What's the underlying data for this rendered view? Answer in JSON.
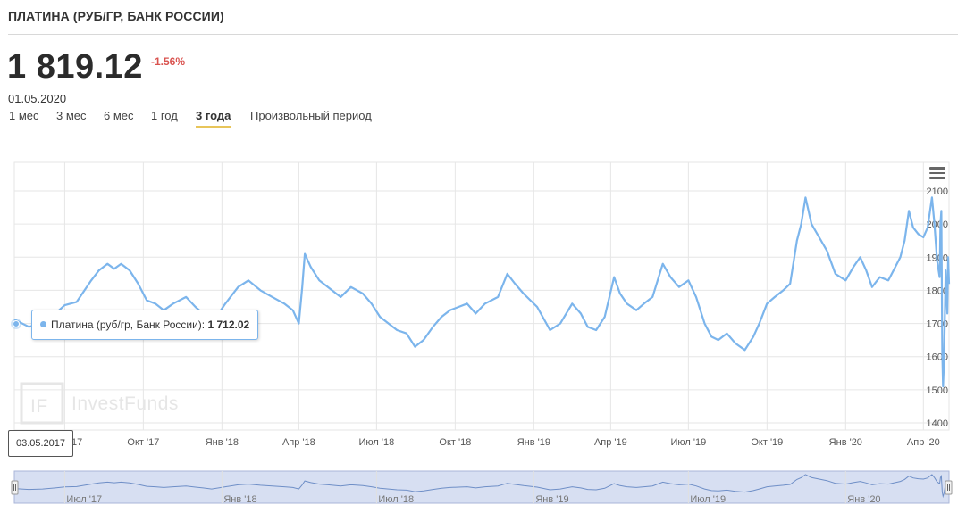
{
  "header": {
    "title": "ПЛАТИНА (РУБ/ГР, БАНК РОССИИ)",
    "price": "1 819.12",
    "change": "-1.56%",
    "date": "01.05.2020"
  },
  "periods": [
    {
      "label": "1 мес",
      "active": false
    },
    {
      "label": "3 мес",
      "active": false
    },
    {
      "label": "6 мес",
      "active": false
    },
    {
      "label": "1 год",
      "active": false
    },
    {
      "label": "3 года",
      "active": true
    },
    {
      "label": "Произвольный период",
      "active": false
    }
  ],
  "tooltip": {
    "series": "Платина (руб/гр, Банк России):",
    "value": "1 712.02"
  },
  "date_flag": "03.05.2017",
  "watermark": "InvestFunds",
  "colors": {
    "line": "#7cb5ec",
    "change_negative": "#d9534f",
    "active_underline": "#e8c55a"
  },
  "icons": {
    "menu": "hamburger-icon"
  },
  "chart_data": {
    "type": "line",
    "series": [
      {
        "name": "Платина (руб/гр, Банк России)",
        "values": []
      }
    ],
    "ylim": [
      1400,
      2100
    ],
    "y_ticks": [
      "1400",
      "1500",
      "1600",
      "1700",
      "1800",
      "1900",
      "2000",
      "2100"
    ],
    "x_range": [
      "2017-05-03",
      "2020-05-01"
    ],
    "x_ticks": [
      {
        "label": "Июл '17",
        "date": "2017-07-01"
      },
      {
        "label": "Окт '17",
        "date": "2017-10-01"
      },
      {
        "label": "Янв '18",
        "date": "2018-01-01"
      },
      {
        "label": "Апр '18",
        "date": "2018-04-01"
      },
      {
        "label": "Июл '18",
        "date": "2018-07-01"
      },
      {
        "label": "Окт '18",
        "date": "2018-10-01"
      },
      {
        "label": "Янв '19",
        "date": "2019-01-01"
      },
      {
        "label": "Апр '19",
        "date": "2019-04-01"
      },
      {
        "label": "Июл '19",
        "date": "2019-07-01"
      },
      {
        "label": "Окт '19",
        "date": "2019-10-01"
      },
      {
        "label": "Янв '20",
        "date": "2020-01-01"
      },
      {
        "label": "Апр '20",
        "date": "2020-04-01"
      }
    ],
    "navigator_ticks": [
      {
        "label": "Июл '17",
        "date": "2017-07-01"
      },
      {
        "label": "Янв '18",
        "date": "2018-01-01"
      },
      {
        "label": "Июл '18",
        "date": "2018-07-01"
      },
      {
        "label": "Янв '19",
        "date": "2019-01-01"
      },
      {
        "label": "Июл '19",
        "date": "2019-07-01"
      },
      {
        "label": "Янв '20",
        "date": "2020-01-01"
      }
    ],
    "points": [
      [
        "2017-05-03",
        1712
      ],
      [
        "2017-05-20",
        1690
      ],
      [
        "2017-06-05",
        1700
      ],
      [
        "2017-06-20",
        1730
      ],
      [
        "2017-07-01",
        1755
      ],
      [
        "2017-07-15",
        1765
      ],
      [
        "2017-08-01",
        1830
      ],
      [
        "2017-08-10",
        1860
      ],
      [
        "2017-08-20",
        1880
      ],
      [
        "2017-08-28",
        1865
      ],
      [
        "2017-09-05",
        1880
      ],
      [
        "2017-09-15",
        1860
      ],
      [
        "2017-09-25",
        1820
      ],
      [
        "2017-10-05",
        1770
      ],
      [
        "2017-10-15",
        1760
      ],
      [
        "2017-10-25",
        1740
      ],
      [
        "2017-11-05",
        1760
      ],
      [
        "2017-11-20",
        1780
      ],
      [
        "2017-12-01",
        1750
      ],
      [
        "2017-12-10",
        1730
      ],
      [
        "2017-12-20",
        1700
      ],
      [
        "2018-01-05",
        1760
      ],
      [
        "2018-01-20",
        1810
      ],
      [
        "2018-02-01",
        1830
      ],
      [
        "2018-02-15",
        1800
      ],
      [
        "2018-03-01",
        1780
      ],
      [
        "2018-03-15",
        1760
      ],
      [
        "2018-03-25",
        1740
      ],
      [
        "2018-04-01",
        1700
      ],
      [
        "2018-04-05",
        1810
      ],
      [
        "2018-04-08",
        1910
      ],
      [
        "2018-04-15",
        1870
      ],
      [
        "2018-04-25",
        1830
      ],
      [
        "2018-05-05",
        1810
      ],
      [
        "2018-05-20",
        1780
      ],
      [
        "2018-06-01",
        1810
      ],
      [
        "2018-06-15",
        1790
      ],
      [
        "2018-06-25",
        1760
      ],
      [
        "2018-07-05",
        1720
      ],
      [
        "2018-07-15",
        1700
      ],
      [
        "2018-07-25",
        1680
      ],
      [
        "2018-08-05",
        1670
      ],
      [
        "2018-08-15",
        1630
      ],
      [
        "2018-08-25",
        1650
      ],
      [
        "2018-09-05",
        1690
      ],
      [
        "2018-09-15",
        1720
      ],
      [
        "2018-09-25",
        1740
      ],
      [
        "2018-10-05",
        1750
      ],
      [
        "2018-10-15",
        1760
      ],
      [
        "2018-10-25",
        1730
      ],
      [
        "2018-11-05",
        1760
      ],
      [
        "2018-11-20",
        1780
      ],
      [
        "2018-12-01",
        1850
      ],
      [
        "2018-12-10",
        1820
      ],
      [
        "2018-12-20",
        1790
      ],
      [
        "2019-01-05",
        1750
      ],
      [
        "2019-01-20",
        1680
      ],
      [
        "2019-02-01",
        1700
      ],
      [
        "2019-02-15",
        1760
      ],
      [
        "2019-02-25",
        1730
      ],
      [
        "2019-03-05",
        1690
      ],
      [
        "2019-03-15",
        1680
      ],
      [
        "2019-03-25",
        1720
      ],
      [
        "2019-04-05",
        1840
      ],
      [
        "2019-04-12",
        1790
      ],
      [
        "2019-04-20",
        1760
      ],
      [
        "2019-05-01",
        1740
      ],
      [
        "2019-05-10",
        1760
      ],
      [
        "2019-05-20",
        1780
      ],
      [
        "2019-06-01",
        1880
      ],
      [
        "2019-06-10",
        1840
      ],
      [
        "2019-06-20",
        1810
      ],
      [
        "2019-07-01",
        1830
      ],
      [
        "2019-07-10",
        1780
      ],
      [
        "2019-07-20",
        1700
      ],
      [
        "2019-07-28",
        1660
      ],
      [
        "2019-08-05",
        1650
      ],
      [
        "2019-08-15",
        1670
      ],
      [
        "2019-08-25",
        1640
      ],
      [
        "2019-09-05",
        1620
      ],
      [
        "2019-09-15",
        1660
      ],
      [
        "2019-09-22",
        1700
      ],
      [
        "2019-10-01",
        1760
      ],
      [
        "2019-10-10",
        1780
      ],
      [
        "2019-10-20",
        1800
      ],
      [
        "2019-10-28",
        1820
      ],
      [
        "2019-11-05",
        1950
      ],
      [
        "2019-11-10",
        2000
      ],
      [
        "2019-11-15",
        2080
      ],
      [
        "2019-11-22",
        2000
      ],
      [
        "2019-12-01",
        1960
      ],
      [
        "2019-12-10",
        1920
      ],
      [
        "2019-12-20",
        1850
      ],
      [
        "2020-01-01",
        1830
      ],
      [
        "2020-01-10",
        1870
      ],
      [
        "2020-01-18",
        1900
      ],
      [
        "2020-01-25",
        1860
      ],
      [
        "2020-02-01",
        1810
      ],
      [
        "2020-02-10",
        1840
      ],
      [
        "2020-02-20",
        1830
      ],
      [
        "2020-02-28",
        1870
      ],
      [
        "2020-03-05",
        1900
      ],
      [
        "2020-03-10",
        1950
      ],
      [
        "2020-03-15",
        2040
      ],
      [
        "2020-03-20",
        1990
      ],
      [
        "2020-03-26",
        1970
      ],
      [
        "2020-04-01",
        1960
      ],
      [
        "2020-04-06",
        1990
      ],
      [
        "2020-04-11",
        2080
      ],
      [
        "2020-04-14",
        2000
      ],
      [
        "2020-04-17",
        1890
      ],
      [
        "2020-04-20",
        1840
      ],
      [
        "2020-04-21",
        2000
      ],
      [
        "2020-04-22",
        2040
      ],
      [
        "2020-04-23",
        1620
      ],
      [
        "2020-04-24",
        1510
      ],
      [
        "2020-04-25",
        1580
      ],
      [
        "2020-04-26",
        1700
      ],
      [
        "2020-04-27",
        1860
      ],
      [
        "2020-04-28",
        1800
      ],
      [
        "2020-04-29",
        1730
      ],
      [
        "2020-04-30",
        1900
      ],
      [
        "2020-05-01",
        1819.12
      ]
    ]
  }
}
